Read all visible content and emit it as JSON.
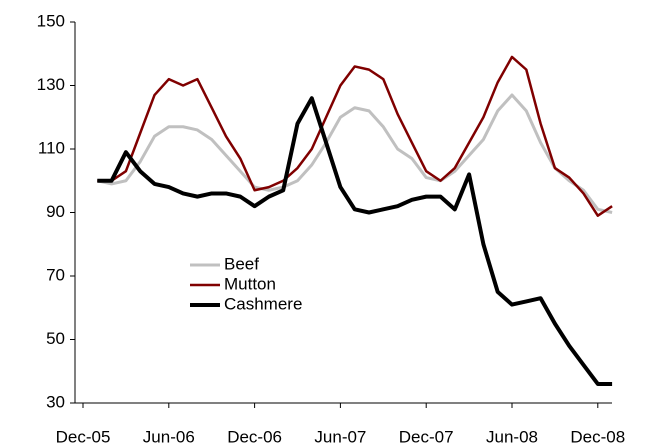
{
  "chart_data": {
    "type": "line",
    "categories": [
      "Dec-05",
      null,
      null,
      null,
      null,
      null,
      "Jun-06",
      null,
      null,
      null,
      null,
      null,
      "Dec-06",
      null,
      null,
      null,
      null,
      null,
      "Jun-07",
      null,
      null,
      null,
      null,
      null,
      "Dec-07",
      null,
      null,
      null,
      null,
      null,
      "Jun-08",
      null,
      null,
      null,
      null,
      null,
      "Dec-08",
      null
    ],
    "series": [
      {
        "name": "Beef",
        "color": "#c0c0c0",
        "values": [
          null,
          100,
          99,
          100,
          106,
          114,
          117,
          117,
          116,
          113,
          108,
          103,
          98,
          97,
          98,
          100,
          105,
          112,
          120,
          123,
          122,
          117,
          110,
          107,
          101,
          100,
          103,
          108,
          113,
          122,
          127,
          122,
          112,
          104,
          100,
          97,
          91,
          90
        ]
      },
      {
        "name": "Mutton",
        "color": "#800000",
        "values": [
          null,
          100,
          100,
          103,
          115,
          127,
          132,
          130,
          132,
          123,
          114,
          107,
          97,
          98,
          100,
          104,
          110,
          120,
          130,
          136,
          135,
          132,
          121,
          112,
          103,
          100,
          104,
          112,
          120,
          131,
          139,
          135,
          118,
          104,
          101,
          96,
          89,
          92
        ]
      },
      {
        "name": "Cashmere",
        "color": "#000000",
        "values": [
          null,
          100,
          100,
          109,
          103,
          99,
          98,
          96,
          95,
          96,
          96,
          95,
          92,
          95,
          97,
          118,
          126,
          112,
          98,
          91,
          90,
          91,
          92,
          94,
          95,
          95,
          91,
          102,
          80,
          65,
          61,
          62,
          63,
          55,
          48,
          42,
          36,
          36
        ]
      }
    ],
    "ylim": [
      30,
      150
    ],
    "yticks": [
      30,
      50,
      70,
      90,
      110,
      130,
      150
    ]
  }
}
